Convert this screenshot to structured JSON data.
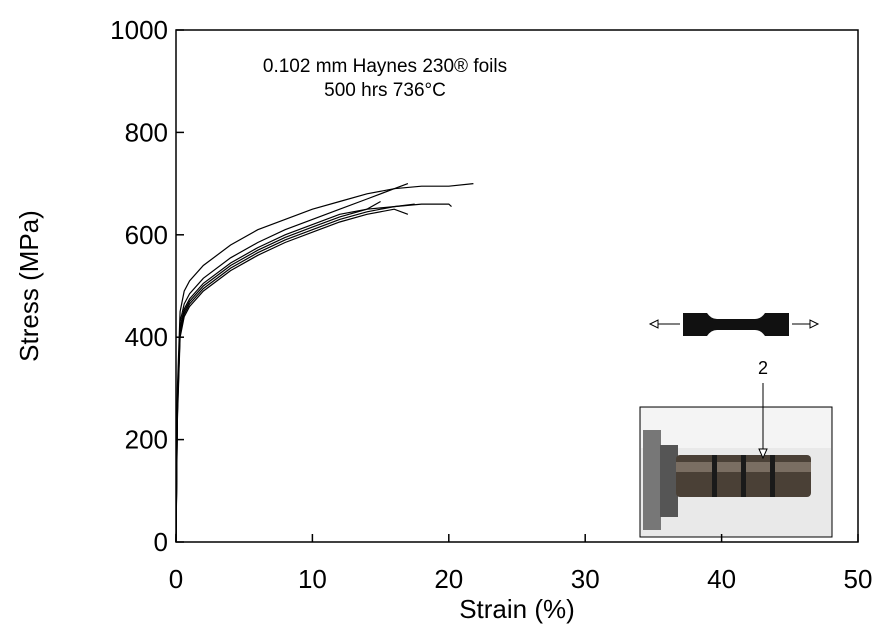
{
  "chart_data": {
    "type": "line",
    "x_label": "Strain (%)",
    "y_label": "Stress (MPa)",
    "annotations": [
      "0.102 mm Haynes 230® foils",
      "500 hrs 736°C",
      "2"
    ],
    "xlim": [
      0,
      50
    ],
    "xticks": [
      0,
      10,
      20,
      30,
      40,
      50
    ],
    "ylim": [
      0,
      1000
    ],
    "yticks": [
      0,
      200,
      400,
      600,
      800,
      1000
    ],
    "grid": false,
    "series": [
      {
        "color": "#000000",
        "x": [
          0,
          0.1,
          0.3,
          0.6,
          1,
          2,
          4,
          6,
          8,
          10,
          12,
          14,
          16,
          18,
          20,
          21.8
        ],
        "values": [
          0,
          300,
          450,
          490,
          510,
          540,
          580,
          610,
          630,
          650,
          665,
          680,
          690,
          695,
          695,
          700
        ]
      },
      {
        "color": "#000000",
        "x": [
          0,
          0.1,
          0.3,
          0.6,
          1,
          2,
          4,
          6,
          8,
          10,
          12,
          14,
          16,
          17
        ],
        "values": [
          0,
          280,
          430,
          465,
          485,
          515,
          555,
          585,
          610,
          630,
          650,
          670,
          690,
          700
        ]
      },
      {
        "color": "#000000",
        "x": [
          0,
          0.1,
          0.3,
          0.6,
          1,
          2,
          4,
          6,
          8,
          10,
          12,
          14,
          16,
          18,
          20,
          20.2
        ],
        "values": [
          0,
          270,
          420,
          455,
          475,
          505,
          545,
          575,
          600,
          620,
          640,
          650,
          655,
          660,
          660,
          655
        ]
      },
      {
        "color": "#000000",
        "x": [
          0,
          0.1,
          0.3,
          0.6,
          1,
          2,
          4,
          6,
          8,
          10,
          12,
          14,
          16,
          17.5
        ],
        "values": [
          0,
          250,
          410,
          445,
          465,
          495,
          535,
          565,
          590,
          610,
          630,
          645,
          655,
          660
        ]
      },
      {
        "color": "#000000",
        "x": [
          0,
          0.1,
          0.3,
          0.6,
          1,
          2,
          4,
          6,
          8,
          10,
          12,
          14,
          15
        ],
        "values": [
          0,
          260,
          415,
          450,
          470,
          500,
          540,
          570,
          595,
          615,
          635,
          650,
          665
        ]
      },
      {
        "color": "#000000",
        "x": [
          0,
          0.1,
          0.3,
          0.6,
          1,
          2,
          4,
          6,
          8,
          10,
          12,
          14,
          16,
          17
        ],
        "values": [
          0,
          240,
          400,
          440,
          460,
          490,
          530,
          560,
          585,
          605,
          625,
          640,
          650,
          640
        ]
      }
    ]
  }
}
